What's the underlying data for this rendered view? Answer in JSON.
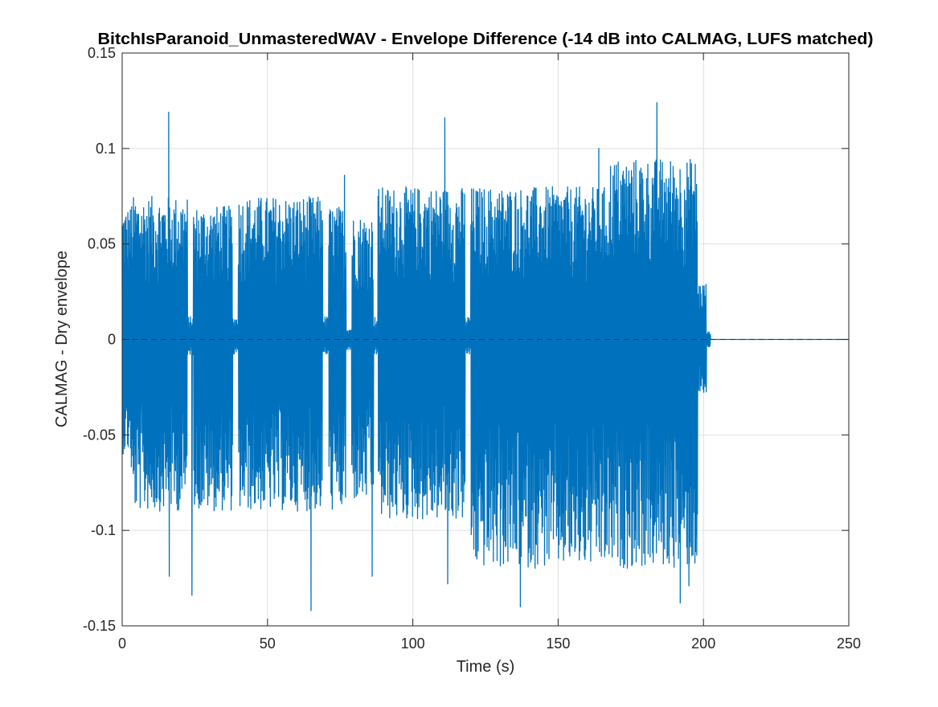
{
  "chart_data": {
    "type": "line",
    "title": "BitchIsParanoid_UnmasteredWAV - Envelope Difference (-14 dB into CALMAG, LUFS matched)",
    "xlabel": "Time (s)",
    "ylabel": "CALMAG - Dry envelope",
    "xlim": [
      0,
      250
    ],
    "ylim": [
      -0.15,
      0.15
    ],
    "xticks": [
      0,
      50,
      100,
      150,
      200,
      250
    ],
    "xtick_labels": [
      "0",
      "50",
      "100",
      "150",
      "200",
      "250"
    ],
    "yticks": [
      -0.15,
      -0.1,
      -0.05,
      0,
      0.05,
      0.1,
      0.15
    ],
    "ytick_labels": [
      "-0.15",
      "-0.1",
      "-0.05",
      "0",
      "0.05",
      "0.1",
      "0.15"
    ],
    "grid": true,
    "reference_line": {
      "y": 0,
      "style": "dashed",
      "color": "#333333"
    },
    "series_color": "#0072BD",
    "series": [
      {
        "segments": [
          {
            "start": 0.0,
            "end": 3.0,
            "max": 0.07,
            "min": -0.06
          },
          {
            "start": 3.0,
            "end": 22.5,
            "max": 0.075,
            "min": -0.09
          },
          {
            "start": 22.5,
            "end": 24.5,
            "max": 0.012,
            "min": -0.008
          },
          {
            "start": 24.5,
            "end": 38.0,
            "max": 0.07,
            "min": -0.09
          },
          {
            "start": 38.0,
            "end": 40.0,
            "max": 0.012,
            "min": -0.008
          },
          {
            "start": 40.0,
            "end": 69.0,
            "max": 0.075,
            "min": -0.09
          },
          {
            "start": 69.0,
            "end": 71.0,
            "max": 0.012,
            "min": -0.008
          },
          {
            "start": 71.0,
            "end": 77.0,
            "max": 0.07,
            "min": -0.09
          },
          {
            "start": 77.0,
            "end": 79.0,
            "max": 0.006,
            "min": -0.006
          },
          {
            "start": 79.0,
            "end": 86.5,
            "max": 0.065,
            "min": -0.085
          },
          {
            "start": 86.5,
            "end": 88.0,
            "max": 0.012,
            "min": -0.008
          },
          {
            "start": 88.0,
            "end": 118.0,
            "max": 0.08,
            "min": -0.095
          },
          {
            "start": 118.0,
            "end": 120.0,
            "max": 0.012,
            "min": -0.008
          },
          {
            "start": 120.0,
            "end": 168.0,
            "max": 0.08,
            "min": -0.12
          },
          {
            "start": 168.0,
            "end": 198.0,
            "max": 0.095,
            "min": -0.12
          },
          {
            "start": 198.0,
            "end": 201.0,
            "max": 0.03,
            "min": -0.03
          },
          {
            "start": 201.0,
            "end": 202.5,
            "max": 0.004,
            "min": -0.004
          },
          {
            "start": 202.5,
            "end": 250.0,
            "max": 0.0,
            "min": 0.0
          }
        ],
        "peaks": [
          {
            "x": 16.0,
            "y": 0.119
          },
          {
            "x": 16.2,
            "y": -0.124
          },
          {
            "x": 24.0,
            "y": -0.134
          },
          {
            "x": 65.0,
            "y": -0.142
          },
          {
            "x": 76.5,
            "y": 0.086
          },
          {
            "x": 86.0,
            "y": -0.124
          },
          {
            "x": 111.0,
            "y": 0.116
          },
          {
            "x": 112.0,
            "y": -0.128
          },
          {
            "x": 137.0,
            "y": -0.14
          },
          {
            "x": 164.0,
            "y": 0.1
          },
          {
            "x": 184.0,
            "y": 0.124
          },
          {
            "x": 192.0,
            "y": -0.138
          },
          {
            "x": 195.0,
            "y": -0.129
          }
        ]
      }
    ]
  }
}
